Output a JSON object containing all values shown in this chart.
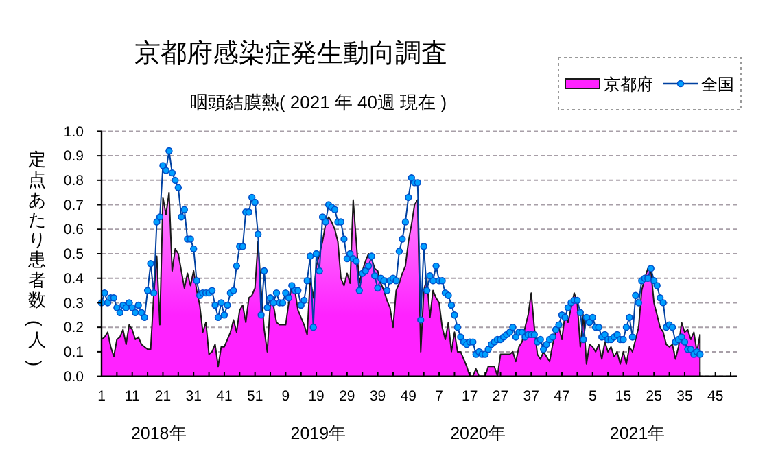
{
  "chart_data": {
    "type": "line",
    "title": "京都府感染症発生動向調査",
    "subtitle": "咽頭結膜熱( 2021 年 40週 現在 )",
    "ylabel": "定点あたり患者数(人)",
    "categories": [
      "1",
      null,
      null,
      null,
      null,
      null,
      null,
      null,
      null,
      null,
      "11",
      null,
      null,
      null,
      null,
      null,
      null,
      null,
      null,
      null,
      "21",
      null,
      null,
      null,
      null,
      null,
      null,
      null,
      null,
      null,
      "31",
      null,
      null,
      null,
      null,
      null,
      null,
      null,
      null,
      null,
      "41",
      null,
      null,
      null,
      null,
      null,
      null,
      null,
      null,
      null,
      "51",
      null,
      null,
      null,
      null,
      null,
      null,
      null,
      null,
      null,
      "9",
      null,
      null,
      null,
      null,
      null,
      null,
      null,
      null,
      null,
      "19",
      null,
      null,
      null,
      null,
      null,
      null,
      null,
      null,
      null,
      "29",
      null,
      null,
      null,
      null,
      null,
      null,
      null,
      null,
      null,
      "39",
      null,
      null,
      null,
      null,
      null,
      null,
      null,
      null,
      null,
      "49",
      null,
      null,
      null,
      null,
      null,
      null,
      null,
      null,
      null,
      "7",
      null,
      null,
      null,
      null,
      null,
      null,
      null,
      null,
      null,
      "17",
      null,
      null,
      null,
      null,
      null,
      null,
      null,
      null,
      null,
      "27",
      null,
      null,
      null,
      null,
      null,
      null,
      null,
      null,
      null,
      "37",
      null,
      null,
      null,
      null,
      null,
      null,
      null,
      null,
      null,
      "47",
      null,
      null,
      null,
      null,
      null,
      null,
      null,
      null,
      null,
      "5",
      null,
      null,
      null,
      null,
      null,
      null,
      null,
      null,
      null,
      "15",
      null,
      null,
      null,
      null,
      null,
      null,
      null,
      null,
      null,
      "25",
      null,
      null,
      null,
      null,
      null,
      null,
      null,
      null,
      null,
      "35",
      null,
      null,
      null,
      null,
      null,
      null,
      null,
      null,
      null,
      "45",
      null,
      null,
      null,
      null,
      null,
      null,
      null
    ],
    "series": [
      {
        "name": "京都府",
        "type": "area",
        "color": "#ff22ff",
        "values": [
          0.15,
          0.16,
          0.18,
          0.12,
          0.08,
          0.15,
          0.16,
          0.19,
          0.13,
          0.21,
          0.19,
          0.15,
          0.16,
          0.13,
          0.12,
          0.11,
          0.11,
          0.33,
          0.49,
          0.21,
          0.73,
          0.66,
          0.75,
          0.43,
          0.52,
          0.5,
          0.43,
          0.36,
          0.42,
          0.37,
          0.43,
          0.35,
          0.29,
          0.18,
          0.22,
          0.09,
          0.1,
          0.13,
          0.04,
          0.12,
          0.12,
          0.15,
          0.18,
          0.23,
          0.18,
          0.27,
          0.29,
          0.22,
          0.32,
          0.33,
          0.36,
          0.55,
          0.35,
          0.19,
          0.1,
          0.3,
          0.29,
          0.22,
          0.21,
          0.21,
          0.21,
          0.3,
          0.37,
          0.35,
          0.27,
          0.24,
          0.21,
          0.17,
          0.4,
          0.32,
          0.45,
          0.5,
          0.55,
          0.62,
          0.65,
          0.63,
          0.6,
          0.55,
          0.4,
          0.37,
          0.42,
          0.38,
          0.72,
          0.55,
          0.38,
          0.43,
          0.47,
          0.5,
          0.48,
          0.44,
          0.43,
          0.38,
          0.35,
          0.31,
          0.28,
          0.2,
          0.35,
          0.38,
          0.42,
          0.45,
          0.55,
          0.62,
          0.7,
          0.72,
          0.1,
          0.35,
          0.4,
          0.24,
          0.35,
          0.32,
          0.3,
          0.2,
          0.15,
          0.22,
          0.1,
          0.18,
          0.1,
          0.1,
          0.07,
          0.04,
          0,
          0,
          0.03,
          0,
          0,
          0,
          0.04,
          0.04,
          0.04,
          0,
          0.09,
          0.09,
          0.09,
          0.09,
          0.1,
          0.06,
          0.12,
          0.14,
          0.2,
          0.25,
          0.34,
          0.2,
          0.09,
          0.07,
          0.1,
          0.08,
          0.06,
          0.13,
          0.18,
          0.2,
          0.15,
          0.25,
          0.22,
          0.28,
          0.34,
          0.3,
          0.12,
          0.25,
          0.05,
          0.13,
          0.12,
          0.1,
          0.13,
          0.07,
          0.14,
          0.1,
          0.12,
          0.08,
          0.1,
          0.05,
          0.1,
          0.05,
          0.12,
          0.1,
          0.15,
          0.2,
          0.35,
          0.4,
          0.44,
          0.43,
          0.3,
          0.25,
          0.2,
          0.18,
          0.13,
          0.12,
          0.13,
          0.07,
          0.12,
          0.22,
          0.18,
          0.19,
          0.15,
          0.18,
          0.1,
          0.17,
          null,
          null,
          null,
          null,
          null,
          null,
          null,
          null,
          null,
          null,
          null,
          null
        ]
      },
      {
        "name": "全国",
        "color": "#00a0ff",
        "marker": "circle",
        "values": [
          0.3,
          0.34,
          0.3,
          0.32,
          0.32,
          0.28,
          0.26,
          0.29,
          0.28,
          0.3,
          0.28,
          0.26,
          0.29,
          0.26,
          0.24,
          0.35,
          0.46,
          0.34,
          0.63,
          0.65,
          0.86,
          0.84,
          0.92,
          0.83,
          0.8,
          0.77,
          0.65,
          0.68,
          0.56,
          0.56,
          0.52,
          0.39,
          0.33,
          0.34,
          0.34,
          0.34,
          0.35,
          0.29,
          0.24,
          0.3,
          0.25,
          0.29,
          0.34,
          0.35,
          0.45,
          0.53,
          0.53,
          0.67,
          0.67,
          0.73,
          0.71,
          0.58,
          0.25,
          0.43,
          0.28,
          0.32,
          0.3,
          0.34,
          0.3,
          0.3,
          0.34,
          0.32,
          0.37,
          0.35,
          0.35,
          0.29,
          0.31,
          0.39,
          0.49,
          0.2,
          0.5,
          0.43,
          0.65,
          0.63,
          0.7,
          0.69,
          0.68,
          0.63,
          0.63,
          0.56,
          0.48,
          0.5,
          0.48,
          0.47,
          0.35,
          0.42,
          0.43,
          0.45,
          0.49,
          0.41,
          0.36,
          0.4,
          0.39,
          0.35,
          0.39,
          0.4,
          0.39,
          0.51,
          0.56,
          0.63,
          0.73,
          0.81,
          0.79,
          0.79,
          0.23,
          0.53,
          0.35,
          0.41,
          0.39,
          0.45,
          0.39,
          0.39,
          0.34,
          0.33,
          0.29,
          0.25,
          0.2,
          0.16,
          0.14,
          0.13,
          0.14,
          0.14,
          0.09,
          0.1,
          0.09,
          0.09,
          0.11,
          0.13,
          0.14,
          0.15,
          0.15,
          0.16,
          0.17,
          0.18,
          0.2,
          0.16,
          0.18,
          0.18,
          0.16,
          0.17,
          0.17,
          0.17,
          0.14,
          0.15,
          0.11,
          0.13,
          0.15,
          0.16,
          0.19,
          0.21,
          0.25,
          0.24,
          0.28,
          0.3,
          0.31,
          0.31,
          0.26,
          0.15,
          0.24,
          0.22,
          0.24,
          0.2,
          0.2,
          0.16,
          0.17,
          0.15,
          0.15,
          0.16,
          0.17,
          0.15,
          0.15,
          0.2,
          0.24,
          0.16,
          0.33,
          0.3,
          0.39,
          0.4,
          0.4,
          0.44,
          0.39,
          0.37,
          0.32,
          0.3,
          0.2,
          0.21,
          0.2,
          0.14,
          0.15,
          0.16,
          0.14,
          0.11,
          0.11,
          0.09,
          0.1,
          0.09,
          null,
          null,
          null,
          null,
          null,
          null,
          null,
          null,
          null,
          null,
          null,
          null
        ]
      }
    ],
    "ylim": [
      0,
      1
    ],
    "yticks": [
      {
        "value": 0,
        "label": "0.0"
      },
      0.1,
      0.2,
      0.3,
      0.4,
      0.5,
      0.6,
      0.7,
      0.8,
      0.9,
      {
        "value": 1,
        "label": "1.0"
      }
    ],
    "grid": "y",
    "legend": "top right",
    "line_style": "solid",
    "annotations": [
      "2018年",
      "2019年",
      "2020年",
      "2021年"
    ]
  }
}
